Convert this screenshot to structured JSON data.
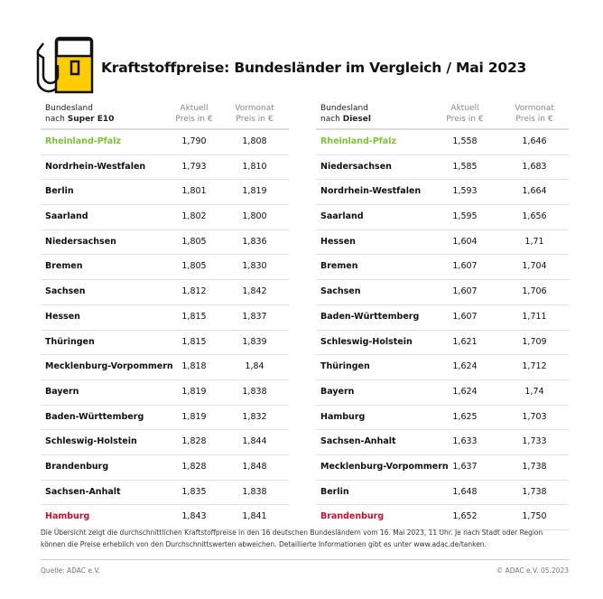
{
  "title": "Kraftstoffpreise: Bundesländer im Vergleich / Mai 2023",
  "colors": {
    "best": "#7dc42f",
    "worst": "#c8102e",
    "icon_fill": "#ffcc00"
  },
  "icon": "fuel-pump-icon",
  "left": {
    "header": {
      "name_line1": "Bundesland",
      "name_line2_prefix": "nach ",
      "name_line2_bold": "Super E10",
      "current_line1": "Aktuell",
      "current_line2": "Preis in €",
      "prev_line1": "Vormonat",
      "prev_line2": "Preis in €"
    },
    "rows": [
      {
        "name": "Rheinland-Pfalz",
        "current": "1,790",
        "prev": "1,808",
        "highlight": "best"
      },
      {
        "name": "Nordrhein-Westfalen",
        "current": "1,793",
        "prev": "1,810"
      },
      {
        "name": "Berlin",
        "current": "1,801",
        "prev": "1,819"
      },
      {
        "name": "Saarland",
        "current": "1,802",
        "prev": "1,800"
      },
      {
        "name": "Niedersachsen",
        "current": "1,805",
        "prev": "1,836"
      },
      {
        "name": "Bremen",
        "current": "1,805",
        "prev": "1,830"
      },
      {
        "name": "Sachsen",
        "current": "1,812",
        "prev": "1,842"
      },
      {
        "name": "Hessen",
        "current": "1,815",
        "prev": "1,837"
      },
      {
        "name": "Thüringen",
        "current": "1,815",
        "prev": "1,839"
      },
      {
        "name": "Mecklenburg-Vorpommern",
        "current": "1,818",
        "prev": "1,84"
      },
      {
        "name": "Bayern",
        "current": "1,819",
        "prev": "1,838"
      },
      {
        "name": "Baden-Württemberg",
        "current": "1,819",
        "prev": "1,832"
      },
      {
        "name": "Schleswig-Holstein",
        "current": "1,828",
        "prev": "1,844"
      },
      {
        "name": "Brandenburg",
        "current": "1,828",
        "prev": "1,848"
      },
      {
        "name": "Sachsen-Anhalt",
        "current": "1,835",
        "prev": "1,838"
      },
      {
        "name": "Hamburg",
        "current": "1,843",
        "prev": "1,841",
        "highlight": "worst"
      }
    ]
  },
  "right": {
    "header": {
      "name_line1": "Bundesland",
      "name_line2_prefix": "nach ",
      "name_line2_bold": "Diesel",
      "current_line1": "Aktuell",
      "current_line2": "Preis in €",
      "prev_line1": "Vormonat",
      "prev_line2": "Preis in €"
    },
    "rows": [
      {
        "name": "Rheinland-Pfalz",
        "current": "1,558",
        "prev": "1,646",
        "highlight": "best"
      },
      {
        "name": "Niedersachsen",
        "current": "1,585",
        "prev": "1,683"
      },
      {
        "name": "Nordrhein-Westfalen",
        "current": "1,593",
        "prev": "1,664"
      },
      {
        "name": "Saarland",
        "current": "1,595",
        "prev": "1,656"
      },
      {
        "name": "Hessen",
        "current": "1,604",
        "prev": "1,71"
      },
      {
        "name": "Bremen",
        "current": "1,607",
        "prev": "1,704"
      },
      {
        "name": "Sachsen",
        "current": "1,607",
        "prev": "1,706"
      },
      {
        "name": "Baden-Württemberg",
        "current": "1,607",
        "prev": "1,711"
      },
      {
        "name": "Schleswig-Holstein",
        "current": "1,621",
        "prev": "1,709"
      },
      {
        "name": "Thüringen",
        "current": "1,624",
        "prev": "1,712"
      },
      {
        "name": "Bayern",
        "current": "1,624",
        "prev": "1,74"
      },
      {
        "name": "Hamburg",
        "current": "1,625",
        "prev": "1,703"
      },
      {
        "name": "Sachsen-Anhalt",
        "current": "1,633",
        "prev": "1,733"
      },
      {
        "name": "Mecklenburg-Vorpommern",
        "current": "1,637",
        "prev": "1,738"
      },
      {
        "name": "Berlin",
        "current": "1,648",
        "prev": "1,738"
      },
      {
        "name": "Brandenburg",
        "current": "1,652",
        "prev": "1,750",
        "highlight": "worst"
      }
    ]
  },
  "footnote": "Die Übersicht zeigt die durchschnittlichen Kraftstoffpreise in den 16 deutschen Bundesländern vom 16. Mai 2023, 11 Uhr. Je nach Stadt oder Region können die Preise erheblich von den Durchschnittswerten abweichen. Detaillierte Informationen gibt es unter www.adac.de/tanken.",
  "source": "Quelle: ADAC e.V.",
  "copyright": "© ADAC e.V. 05.2023"
}
